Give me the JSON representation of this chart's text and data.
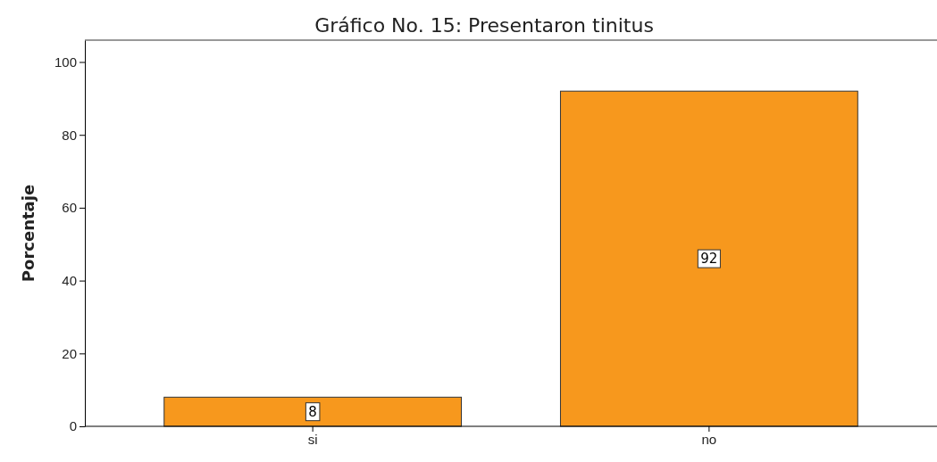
{
  "chart_data": {
    "type": "bar",
    "title": "Gráfico No. 15: Presentaron tinitus",
    "ylabel": "Porcentaje",
    "categories": [
      "si",
      "no"
    ],
    "values": [
      8,
      92
    ],
    "color": "#f7981d",
    "ylim": [
      0,
      106
    ],
    "yticks": [
      0,
      20,
      40,
      60,
      80,
      100
    ],
    "data_labels": true
  }
}
